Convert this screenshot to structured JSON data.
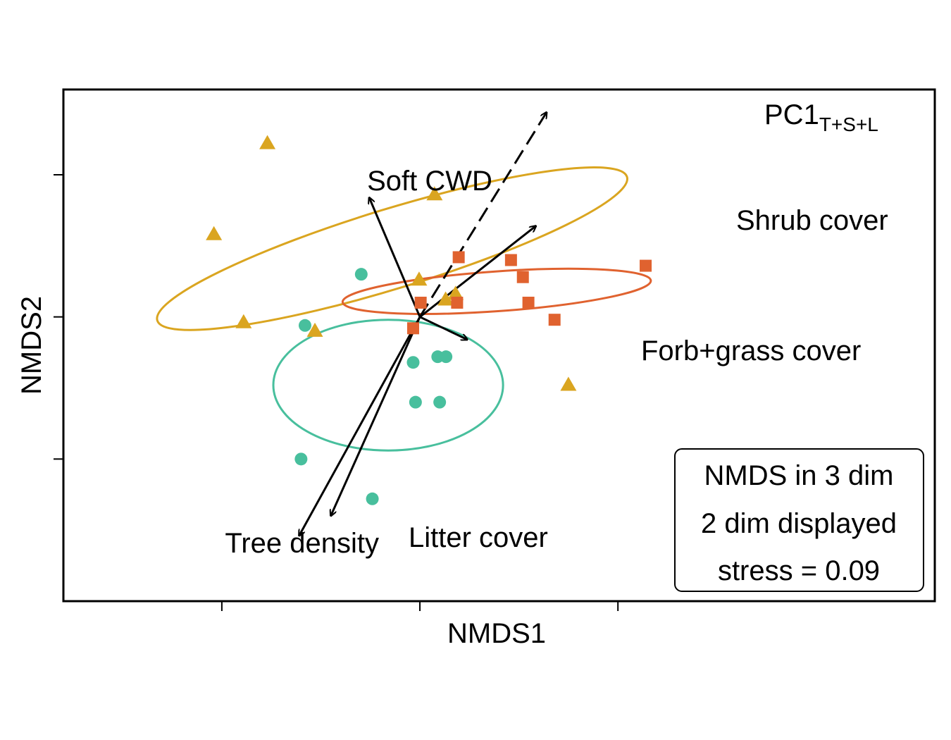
{
  "chart_data": {
    "type": "scatter",
    "xlabel": "NMDS1",
    "ylabel": "NMDS2",
    "xlim": [
      -0.9,
      1.3
    ],
    "ylim": [
      -1.0,
      0.8
    ],
    "xticks": [
      -0.5,
      0.0,
      0.5
    ],
    "yticks": [
      -0.5,
      0.0,
      0.5
    ],
    "tick_labels_shown": false,
    "series": [
      {
        "marker": "triangle",
        "color": "#DAA520",
        "points": [
          [
            -0.385,
            0.61
          ],
          [
            -0.52,
            0.29
          ],
          [
            -0.445,
            -0.02
          ],
          [
            -0.265,
            -0.05
          ],
          [
            0.037,
            0.43
          ],
          [
            -0.002,
            0.13
          ],
          [
            0.065,
            0.06
          ],
          [
            0.09,
            0.08
          ],
          [
            0.375,
            -0.24
          ]
        ]
      },
      {
        "marker": "square",
        "color": "#E0622F",
        "points": [
          [
            0.098,
            0.21
          ],
          [
            0.002,
            0.05
          ],
          [
            -0.017,
            -0.04
          ],
          [
            0.094,
            0.05
          ],
          [
            0.23,
            0.2
          ],
          [
            0.26,
            0.14
          ],
          [
            0.274,
            0.05
          ],
          [
            0.34,
            -0.01
          ],
          [
            0.57,
            0.18
          ]
        ]
      },
      {
        "marker": "circle",
        "color": "#48BF9D",
        "points": [
          [
            -0.148,
            0.15
          ],
          [
            -0.29,
            -0.03
          ],
          [
            -0.017,
            -0.16
          ],
          [
            0.045,
            -0.14
          ],
          [
            0.066,
            -0.14
          ],
          [
            -0.011,
            -0.3
          ],
          [
            0.05,
            -0.3
          ],
          [
            -0.3,
            -0.5
          ],
          [
            -0.12,
            -0.64
          ]
        ]
      }
    ],
    "ellipses": [
      {
        "color": "#DAA520",
        "center": [
          -0.07,
          0.24
        ],
        "rx": 0.62,
        "ry": 0.14,
        "angle_deg": -17
      },
      {
        "color": "#48BF9D",
        "center": [
          -0.08,
          -0.24
        ],
        "rx": 0.29,
        "ry": 0.23,
        "angle_deg": 0
      },
      {
        "color": "#E0622F",
        "center": [
          0.194,
          0.09
        ],
        "rx": 0.39,
        "ry": 0.07,
        "angle_deg": -4
      }
    ],
    "vectors": [
      {
        "label": "Soft CWD",
        "end": [
          -0.128,
          0.42
        ],
        "dashed": false
      },
      {
        "label": "Shrub cover",
        "end": [
          0.293,
          0.32
        ],
        "dashed": false
      },
      {
        "label": "Forb+grass cover",
        "end": [
          0.12,
          -0.08
        ],
        "dashed": false
      },
      {
        "label": "Tree density",
        "end": [
          -0.305,
          -0.77
        ],
        "dashed": false
      },
      {
        "label": "Litter cover",
        "end": [
          -0.225,
          -0.7
        ],
        "dashed": false
      },
      {
        "label": "PC1",
        "subscript": "T+S+L",
        "end": [
          0.32,
          0.72
        ],
        "dashed": true
      }
    ],
    "annotation": {
      "lines": [
        "NMDS in 3 dim",
        "2 dim displayed",
        "stress = 0.09"
      ]
    }
  }
}
